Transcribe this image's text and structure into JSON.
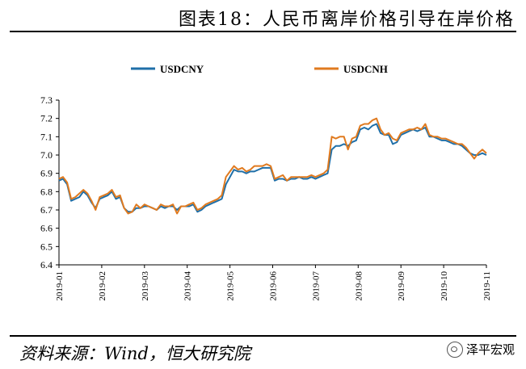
{
  "page": {
    "title": "图表18：人民币离岸价格引导在岸价格",
    "source": "资料来源：Wind，恒大研究院",
    "brand": "泽平宏观"
  },
  "colors": {
    "cny": "#1f6fa8",
    "cnh": "#e07a1f"
  },
  "icons": {
    "brand": "wechat-icon"
  },
  "chart_data": {
    "type": "line",
    "title": "",
    "xlabel": "",
    "ylabel": "",
    "ylim": [
      6.4,
      7.3
    ],
    "yticks": [
      "6.4",
      "6.5",
      "6.6",
      "6.7",
      "6.8",
      "6.9",
      "7.0",
      "7.1",
      "7.2",
      "7.3"
    ],
    "xticks": [
      "2019-01",
      "2019-02",
      "2019-03",
      "2019-04",
      "2019-05",
      "2019-06",
      "2019-07",
      "2019-08",
      "2019-09",
      "2019-10",
      "2019-11"
    ],
    "legend_position": "top",
    "grid": false,
    "x": [
      0.0,
      0.1,
      0.2,
      0.3,
      0.4,
      0.5,
      0.6,
      0.7,
      0.8,
      0.9,
      1.0,
      1.1,
      1.2,
      1.3,
      1.4,
      1.5,
      1.6,
      1.7,
      1.8,
      1.9,
      2.0,
      2.1,
      2.2,
      2.3,
      2.4,
      2.5,
      2.6,
      2.7,
      2.8,
      2.9,
      3.0,
      3.1,
      3.2,
      3.3,
      3.4,
      3.5,
      3.6,
      3.7,
      3.8,
      3.9,
      4.0,
      4.1,
      4.2,
      4.3,
      4.4,
      4.5,
      4.6,
      4.7,
      4.8,
      4.9,
      5.0,
      5.1,
      5.2,
      5.3,
      5.4,
      5.5,
      5.6,
      5.7,
      5.8,
      5.9,
      6.0,
      6.1,
      6.2,
      6.3,
      6.4,
      6.5,
      6.6,
      6.7,
      6.8,
      6.9,
      7.0,
      7.1,
      7.2,
      7.3,
      7.4,
      7.5,
      7.6,
      7.7,
      7.8,
      7.9,
      8.0,
      8.1,
      8.2,
      8.3,
      8.4,
      8.5,
      8.6,
      8.7,
      8.8,
      8.9,
      9.0,
      9.1,
      9.2,
      9.3,
      9.4,
      9.5,
      9.6,
      9.7,
      9.8,
      9.9,
      10.0,
      10.1,
      10.2,
      10.3,
      10.4,
      10.5
    ],
    "series": [
      {
        "name": "USDCNY",
        "values": [
          6.86,
          6.87,
          6.84,
          6.75,
          6.76,
          6.77,
          6.8,
          6.78,
          6.74,
          6.71,
          6.76,
          6.77,
          6.78,
          6.8,
          6.76,
          6.77,
          6.71,
          6.69,
          6.69,
          6.71,
          6.71,
          6.72,
          6.72,
          6.71,
          6.7,
          6.72,
          6.71,
          6.72,
          6.72,
          6.7,
          6.72,
          6.72,
          6.72,
          6.73,
          6.69,
          6.7,
          6.72,
          6.73,
          6.74,
          6.75,
          6.76,
          6.84,
          6.88,
          6.92,
          6.91,
          6.91,
          6.9,
          6.91,
          6.91,
          6.92,
          6.93,
          6.93,
          6.93,
          6.86,
          6.87,
          6.87,
          6.86,
          6.87,
          6.87,
          6.88,
          6.87,
          6.87,
          6.88,
          6.87,
          6.88,
          6.89,
          6.9,
          7.03,
          7.05,
          7.05,
          7.06,
          7.05,
          7.07,
          7.08,
          7.14,
          7.15,
          7.14,
          7.16,
          7.17,
          7.12,
          7.11,
          7.11,
          7.06,
          7.07,
          7.11,
          7.12,
          7.13,
          7.14,
          7.13,
          7.14,
          7.15,
          7.1,
          7.1,
          7.09,
          7.08,
          7.08,
          7.07,
          7.06,
          7.06,
          7.05,
          7.03,
          7.01,
          7.0,
          7.0,
          7.01,
          7.0
        ]
      },
      {
        "name": "USDCNH",
        "values": [
          6.87,
          6.88,
          6.85,
          6.76,
          6.77,
          6.79,
          6.81,
          6.79,
          6.75,
          6.7,
          6.77,
          6.78,
          6.79,
          6.81,
          6.77,
          6.78,
          6.71,
          6.68,
          6.69,
          6.73,
          6.71,
          6.73,
          6.72,
          6.71,
          6.7,
          6.73,
          6.72,
          6.72,
          6.73,
          6.68,
          6.72,
          6.72,
          6.73,
          6.74,
          6.7,
          6.71,
          6.73,
          6.74,
          6.75,
          6.76,
          6.78,
          6.88,
          6.91,
          6.94,
          6.92,
          6.93,
          6.91,
          6.92,
          6.94,
          6.94,
          6.94,
          6.95,
          6.94,
          6.87,
          6.88,
          6.89,
          6.86,
          6.88,
          6.88,
          6.88,
          6.88,
          6.88,
          6.89,
          6.88,
          6.89,
          6.9,
          6.92,
          7.1,
          7.09,
          7.1,
          7.1,
          7.03,
          7.09,
          7.1,
          7.16,
          7.17,
          7.17,
          7.19,
          7.2,
          7.14,
          7.11,
          7.12,
          7.09,
          7.08,
          7.12,
          7.13,
          7.14,
          7.14,
          7.15,
          7.14,
          7.17,
          7.11,
          7.1,
          7.1,
          7.09,
          7.09,
          7.08,
          7.07,
          7.06,
          7.06,
          7.04,
          7.01,
          6.98,
          7.01,
          7.03,
          7.01
        ]
      }
    ]
  }
}
